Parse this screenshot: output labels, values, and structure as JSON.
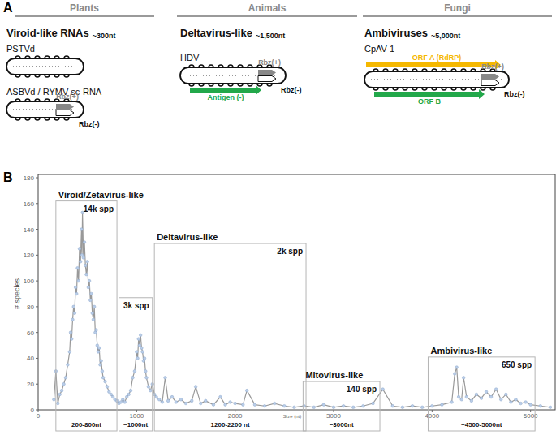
{
  "panel_labels": [
    "A",
    "B"
  ],
  "panel_a": {
    "columns": [
      {
        "header": "Plants",
        "title": "Viroid-like RNAs",
        "size": "~300nt",
        "molecules": [
          {
            "name": "PSTVd"
          },
          {
            "name": "ASBVd / RYMV sc-RNA",
            "ribozymes": [
              "Rbz(+)",
              "Rbz(-)"
            ]
          }
        ]
      },
      {
        "header": "Animals",
        "title": "Deltavirus-like",
        "size": "~1,500nt",
        "molecules": [
          {
            "name": "HDV",
            "ribozymes": [
              "Rbz(+)",
              "Rbz(-)"
            ],
            "orfs": [
              {
                "label": "Antigen (-)",
                "color": "#22a84a"
              }
            ]
          }
        ]
      },
      {
        "header": "Fungi",
        "title": "Ambiviruses",
        "size": "~5,000nt",
        "molecules": [
          {
            "name": "CpAV 1",
            "ribozymes": [
              "Rbz(+)",
              "Rbz(-)"
            ],
            "orfs": [
              {
                "label": "ORF A (RdRP)",
                "color": "#f5b800"
              },
              {
                "label": "ORF B",
                "color": "#22a84a"
              }
            ]
          }
        ]
      }
    ]
  },
  "chart_data": {
    "type": "line",
    "x_label": "Size (nt)",
    "y_label": "# species",
    "color": "#999999",
    "marker": "circle",
    "grid": false,
    "xlim": [
      0,
      5250
    ],
    "xticks": [
      0,
      1000,
      2000,
      3000,
      4000,
      5000
    ],
    "ylim": [
      0,
      180
    ],
    "yticks": [
      0,
      20,
      40,
      60,
      80,
      100,
      120,
      140,
      160,
      180
    ],
    "x": [
      160,
      180,
      200,
      220,
      240,
      260,
      280,
      300,
      320,
      330,
      340,
      350,
      360,
      370,
      380,
      390,
      400,
      410,
      420,
      430,
      440,
      445,
      450,
      460,
      470,
      480,
      490,
      500,
      510,
      520,
      530,
      540,
      550,
      560,
      570,
      580,
      590,
      600,
      610,
      620,
      630,
      640,
      650,
      660,
      680,
      700,
      720,
      740,
      760,
      780,
      800,
      820,
      840,
      860,
      880,
      900,
      920,
      940,
      960,
      980,
      1000,
      1010,
      1020,
      1030,
      1040,
      1050,
      1060,
      1070,
      1080,
      1090,
      1100,
      1120,
      1140,
      1160,
      1180,
      1200,
      1230,
      1260,
      1290,
      1320,
      1360,
      1400,
      1450,
      1500,
      1560,
      1600,
      1650,
      1700,
      1780,
      1850,
      1900,
      1950,
      2000,
      2080,
      2120,
      2200,
      2300,
      2400,
      2500,
      2600,
      2700,
      2800,
      2900,
      3000,
      3100,
      3200,
      3300,
      3400,
      3500,
      3600,
      3700,
      3800,
      3900,
      4000,
      4100,
      4200,
      4230,
      4250,
      4270,
      4300,
      4320,
      4350,
      4400,
      4450,
      4500,
      4550,
      4600,
      4650,
      4700,
      4750,
      4800,
      4850,
      4900,
      4950,
      5000,
      5100,
      5200
    ],
    "values": [
      8,
      30,
      5,
      12,
      15,
      20,
      25,
      35,
      45,
      60,
      55,
      70,
      80,
      75,
      95,
      90,
      110,
      100,
      125,
      115,
      140,
      120,
      153,
      118,
      130,
      112,
      105,
      115,
      95,
      100,
      85,
      90,
      75,
      70,
      80,
      60,
      62,
      50,
      45,
      48,
      35,
      38,
      30,
      25,
      22,
      18,
      14,
      12,
      10,
      8,
      7,
      5,
      6,
      8,
      6,
      10,
      12,
      15,
      25,
      30,
      45,
      40,
      55,
      50,
      58,
      48,
      45,
      38,
      40,
      30,
      25,
      18,
      15,
      20,
      12,
      10,
      8,
      6,
      25,
      7,
      10,
      6,
      8,
      5,
      7,
      18,
      5,
      7,
      4,
      10,
      4,
      6,
      5,
      4,
      15,
      4,
      3,
      5,
      3,
      2,
      3,
      2,
      4,
      2,
      3,
      2,
      3,
      5,
      16,
      3,
      2,
      3,
      2,
      3,
      4,
      6,
      28,
      33,
      10,
      8,
      25,
      10,
      7,
      12,
      9,
      14,
      10,
      16,
      8,
      12,
      6,
      8,
      5,
      6,
      4,
      3,
      2
    ],
    "regions": [
      {
        "label": "Viroid/Zetavirus-like",
        "count": "14k spp",
        "range_label": "200-800nt",
        "xrange": [
          180,
          800
        ],
        "ymax": 162
      },
      {
        "count": "3k spp",
        "range_label": "~1000nt",
        "xrange": [
          820,
          1160
        ],
        "ymax": 87
      },
      {
        "label": "Deltavirus-like",
        "count": "2k spp",
        "range_label": "1200-2200 nt",
        "xrange": [
          1180,
          2720
        ],
        "ymax": 129
      },
      {
        "label": "Mitovirus-like",
        "count": "140 spp",
        "range_label": "~3000nt",
        "xrange": [
          2690,
          3470
        ],
        "ymax": 22
      },
      {
        "label": "Ambivirus-like",
        "count": "650 spp",
        "range_label": "~4500-5000nt",
        "xrange": [
          3960,
          5045
        ],
        "ymax": 41
      }
    ]
  }
}
